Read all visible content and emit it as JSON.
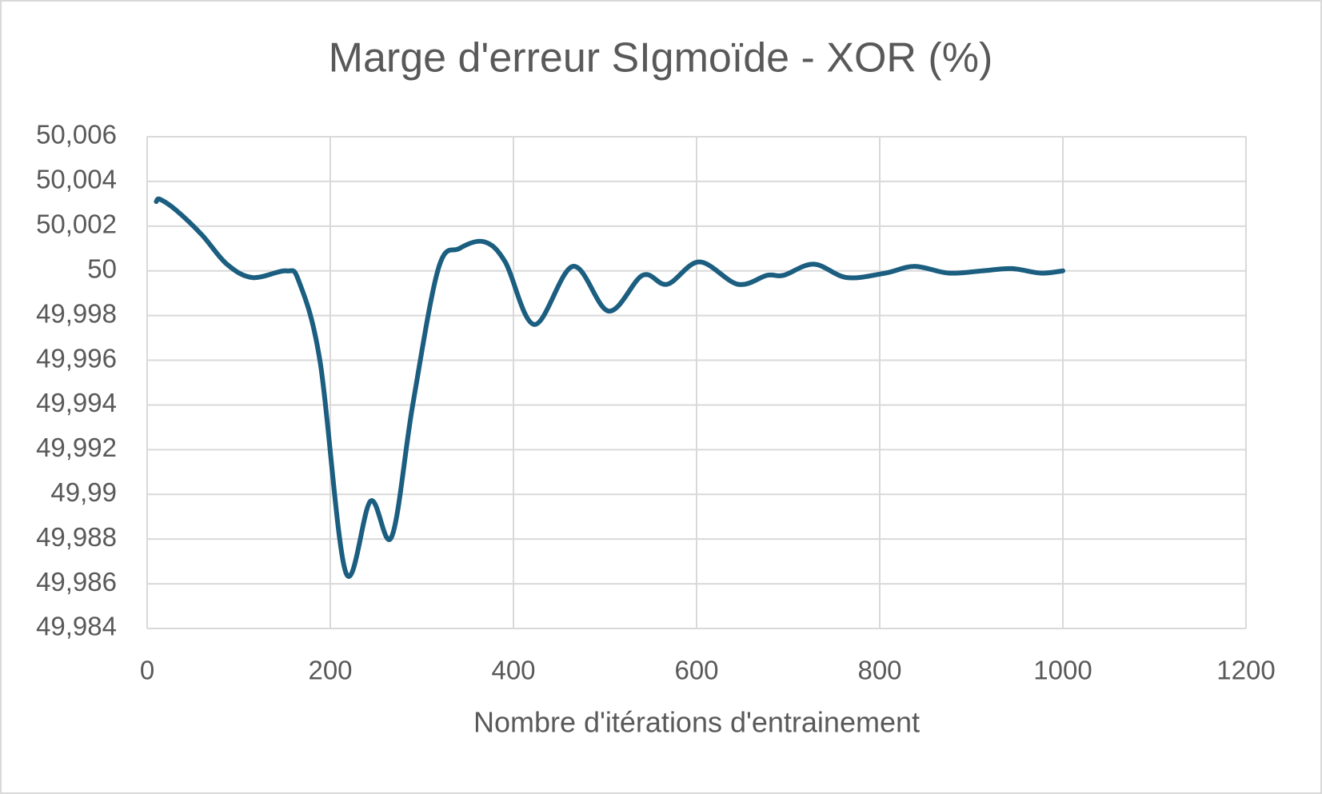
{
  "chart_data": {
    "type": "line",
    "title": "Marge d'erreur SIgmoïde - XOR (%)",
    "x_label": "Nombre d'itérations d'entrainement",
    "x": [
      10,
      14,
      32,
      60,
      87,
      115,
      152,
      166,
      189,
      217,
      244,
      267,
      290,
      318,
      341,
      368,
      391,
      423,
      465,
      504,
      541,
      568,
      603,
      645,
      677,
      695,
      728,
      764,
      806,
      838,
      875,
      912,
      944,
      976,
      1000
    ],
    "series": [
      {
        "color": "#1b5e80",
        "values": [
          50.0031,
          50.0032,
          50.0027,
          50.0016,
          50.0003,
          49.9997,
          50.0,
          49.9995,
          49.9959,
          49.9865,
          49.9897,
          49.9881,
          49.994,
          50.0001,
          50.001,
          50.0013,
          50.0004,
          49.9976,
          50.0002,
          49.9982,
          49.9998,
          49.9994,
          50.0004,
          49.9994,
          49.9998,
          49.9998,
          50.0003,
          49.9997,
          49.9999,
          50.0002,
          49.9999,
          50.0,
          50.0001,
          49.9999,
          50.0
        ]
      }
    ],
    "xlim": [
      0,
      1200
    ],
    "xticks": [
      0,
      200,
      400,
      600,
      800,
      1000,
      1200
    ],
    "ylim": [
      49.984,
      50.006
    ],
    "yticks": [
      {
        "value": 49.984,
        "label": "49,984"
      },
      {
        "value": 49.986,
        "label": "49,986"
      },
      {
        "value": 49.988,
        "label": "49,988"
      },
      {
        "value": 49.99,
        "label": "49,99"
      },
      {
        "value": 49.992,
        "label": "49,992"
      },
      {
        "value": 49.994,
        "label": "49,994"
      },
      {
        "value": 49.996,
        "label": "49,996"
      },
      {
        "value": 49.998,
        "label": "49,998"
      },
      50,
      {
        "value": 50.002,
        "label": "50,002"
      },
      {
        "value": 50.004,
        "label": "50,004"
      },
      {
        "value": 50.006,
        "label": "50,006"
      }
    ],
    "grid": true,
    "smooth": true
  }
}
